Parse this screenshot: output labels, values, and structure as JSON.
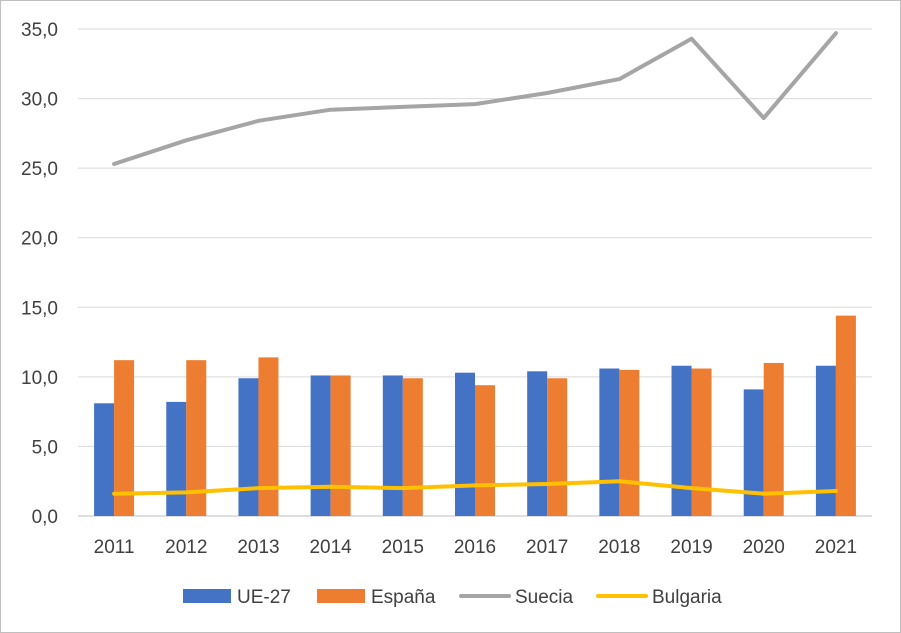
{
  "chart_data": {
    "type": "bar",
    "title": "",
    "xlabel": "",
    "ylabel": "",
    "categories": [
      "2011",
      "2012",
      "2013",
      "2014",
      "2015",
      "2016",
      "2017",
      "2018",
      "2019",
      "2020",
      "2021"
    ],
    "ylim": [
      0,
      35
    ],
    "yticks": [
      0,
      5,
      10,
      15,
      20,
      25,
      30,
      35
    ],
    "ytick_labels": [
      "0,0",
      "5,0",
      "10,0",
      "15,0",
      "20,0",
      "25,0",
      "30,0",
      "35,0"
    ],
    "grid": true,
    "legend_position": "bottom",
    "series": [
      {
        "name": "UE-27",
        "kind": "bar",
        "color": "#4472C4",
        "values": [
          8.1,
          8.2,
          9.9,
          10.1,
          10.1,
          10.3,
          10.4,
          10.6,
          10.8,
          9.1,
          10.8
        ]
      },
      {
        "name": "España",
        "kind": "bar",
        "color": "#ED7D31",
        "values": [
          11.2,
          11.2,
          11.4,
          10.1,
          9.9,
          9.4,
          9.9,
          10.5,
          10.6,
          11.0,
          14.4
        ]
      },
      {
        "name": "Suecia",
        "kind": "line",
        "color": "#A5A5A5",
        "values": [
          25.3,
          27.0,
          28.4,
          29.2,
          29.4,
          29.6,
          30.4,
          31.4,
          34.3,
          28.6,
          34.7
        ]
      },
      {
        "name": "Bulgaria",
        "kind": "line",
        "color": "#FFC000",
        "values": [
          1.6,
          1.7,
          2.0,
          2.1,
          2.0,
          2.2,
          2.3,
          2.5,
          2.0,
          1.6,
          1.8
        ]
      }
    ]
  }
}
